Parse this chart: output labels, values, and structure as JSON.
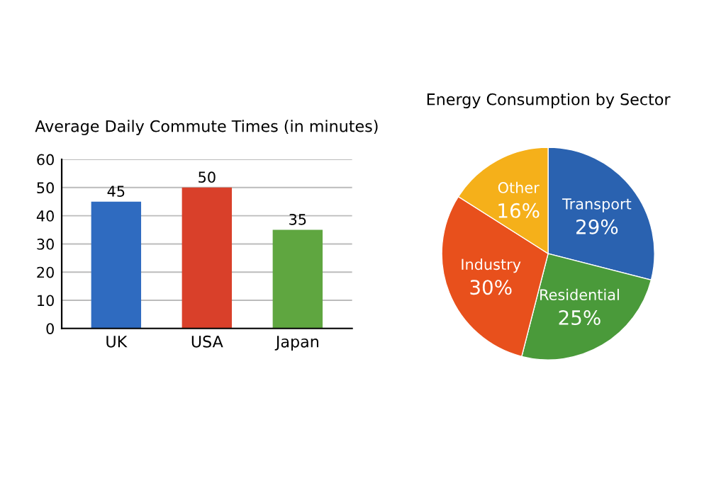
{
  "chart_data": [
    {
      "type": "bar",
      "title": "Average Daily Commute Times (in minutes)",
      "categories": [
        "UK",
        "USA",
        "Japan"
      ],
      "values": [
        45,
        50,
        35
      ],
      "colors": [
        "#2f6bc0",
        "#d9402a",
        "#5fa640"
      ],
      "ylim": [
        0,
        60
      ],
      "yticks": [
        0,
        10,
        20,
        30,
        40,
        50,
        60
      ],
      "grid": "y",
      "data_labels": true
    },
    {
      "type": "pie",
      "title": "Energy Consumption by Sector",
      "categories": [
        "Transport",
        "Residential",
        "Industry",
        "Other"
      ],
      "values": [
        29,
        25,
        30,
        16
      ],
      "value_labels": [
        "29%",
        "25%",
        "30%",
        "16%"
      ],
      "colors": [
        "#2a62b0",
        "#4a9a3a",
        "#e8501c",
        "#f5b01a"
      ]
    }
  ]
}
